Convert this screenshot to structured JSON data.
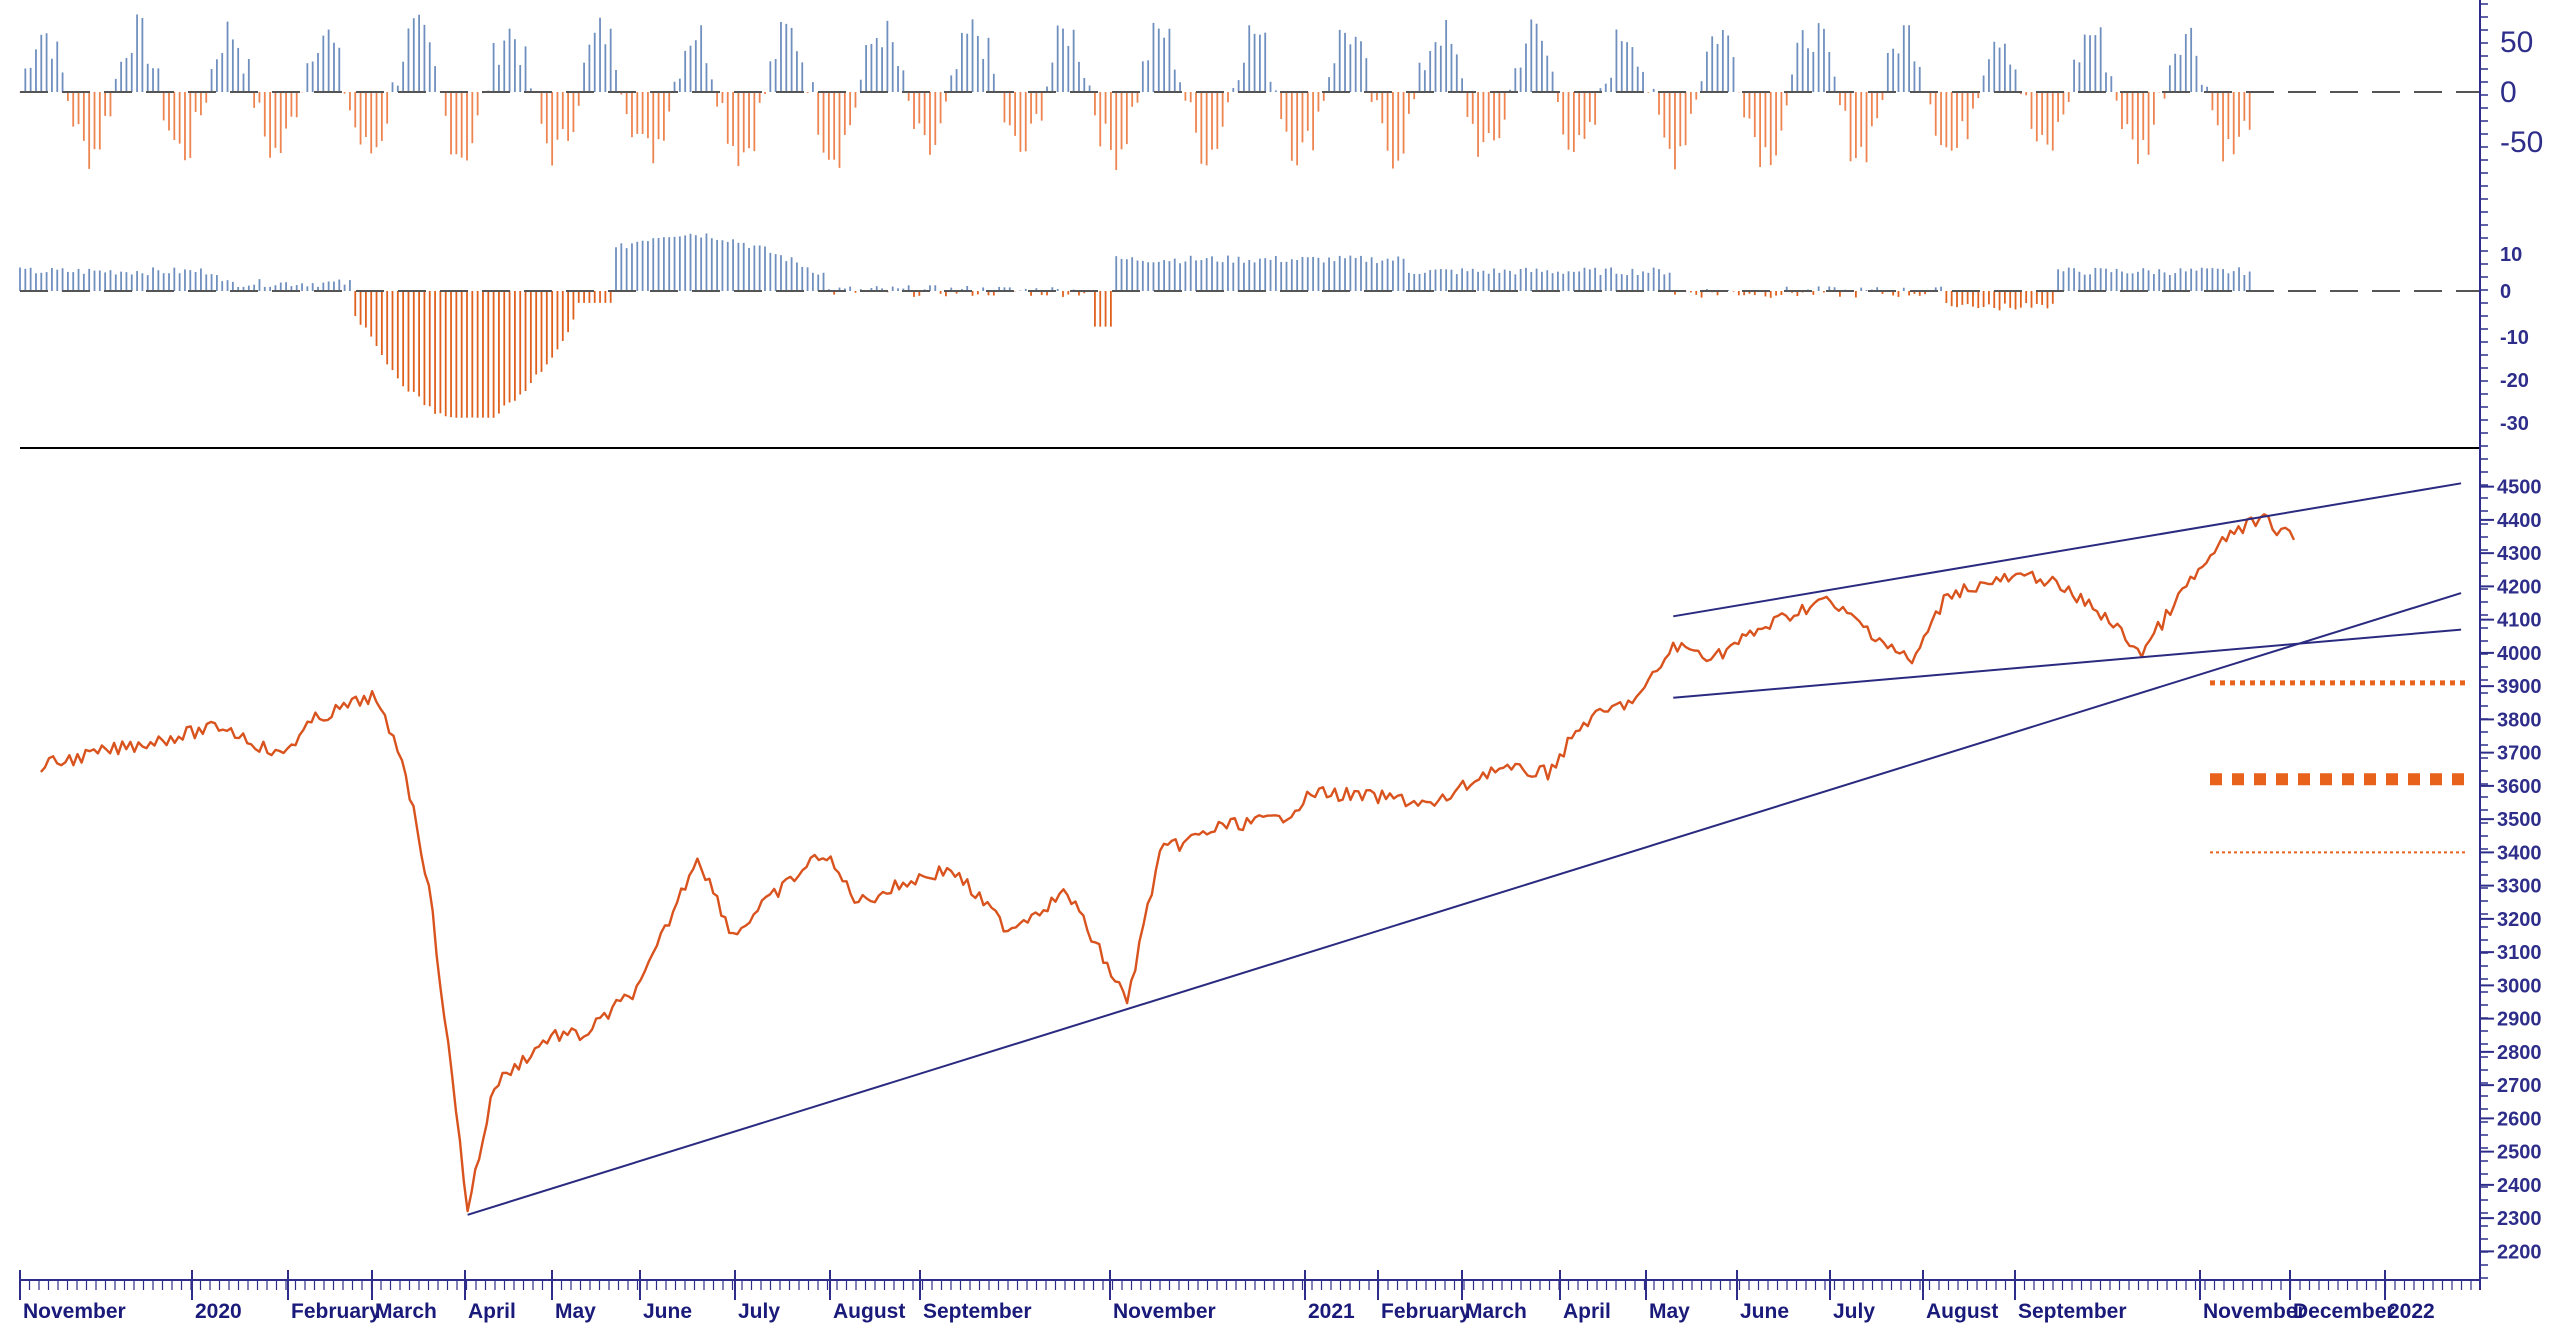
{
  "colors": {
    "price": "#d9531e",
    "up_bar": "#6f8fbf",
    "down_bar": "#ee8450",
    "down_bar_dark": "#e0601e",
    "trendline": "#2a2a80",
    "axis": "#2e2e8a",
    "separator": "#000000",
    "zero_line": "#555555",
    "support_levels": "#e8621c"
  },
  "chart_data": [
    {
      "type": "bar",
      "panel": "oscillator-top",
      "title": "",
      "ylim": [
        -100,
        100
      ],
      "yticks": [
        "50",
        "0",
        "-50"
      ],
      "zero_line": "dashed",
      "description_of_values": "alternating positive (blue) and negative (orange) swings ranging roughly -80 to +90"
    },
    {
      "type": "bar",
      "panel": "oscillator-middle",
      "title": "",
      "ylim": [
        -35,
        15
      ],
      "yticks": [
        "10",
        "0",
        "-10",
        "-20",
        "-30"
      ],
      "zero_line": "dashed",
      "notable": {
        "min_value": -32,
        "min_month": "March 2020",
        "max_value": 16,
        "max_month": "June 2020"
      }
    },
    {
      "type": "line",
      "panel": "price",
      "title": "",
      "xlabel": "",
      "ylabel": "",
      "ylim": [
        2150,
        4520
      ],
      "yticks": [
        "4500",
        "4400",
        "4300",
        "4200",
        "4100",
        "4000",
        "3900",
        "3800",
        "3700",
        "3600",
        "3500",
        "3400",
        "3300",
        "3200",
        "3100",
        "3000",
        "2900",
        "2800",
        "2700",
        "2600",
        "2500",
        "2400",
        "2300",
        "2200"
      ],
      "x_labels": [
        "November",
        "2020",
        "February",
        "March",
        "April",
        "May",
        "June",
        "July",
        "August",
        "September",
        "November",
        "2021",
        "February",
        "March",
        "April",
        "May",
        "June",
        "July",
        "August",
        "September",
        "November",
        "December",
        "2022"
      ],
      "points": [
        {
          "date": "2019-11",
          "y": 3660
        },
        {
          "date": "2019-12",
          "y": 3720
        },
        {
          "date": "2020-01",
          "y": 3780
        },
        {
          "date": "2020-01-20",
          "y": 3690
        },
        {
          "date": "2020-02",
          "y": 3800
        },
        {
          "date": "2020-02-20",
          "y": 3870
        },
        {
          "date": "2020-03-01",
          "y": 3690
        },
        {
          "date": "2020-03-10",
          "y": 3300
        },
        {
          "date": "2020-03-23",
          "y": 2330
        },
        {
          "date": "2020-04",
          "y": 2700
        },
        {
          "date": "2020-04-20",
          "y": 2850
        },
        {
          "date": "2020-05",
          "y": 2850
        },
        {
          "date": "2020-05-20",
          "y": 3000
        },
        {
          "date": "2020-06-08",
          "y": 3390
        },
        {
          "date": "2020-06-20",
          "y": 3150
        },
        {
          "date": "2020-07",
          "y": 3250
        },
        {
          "date": "2020-07-20",
          "y": 3400
        },
        {
          "date": "2020-08",
          "y": 3250
        },
        {
          "date": "2020-08-20",
          "y": 3320
        },
        {
          "date": "2020-09",
          "y": 3350
        },
        {
          "date": "2020-09-20",
          "y": 3170
        },
        {
          "date": "2020-10-10",
          "y": 3280
        },
        {
          "date": "2020-10-30",
          "y": 2950
        },
        {
          "date": "2020-11-10",
          "y": 3400
        },
        {
          "date": "2020-12",
          "y": 3480
        },
        {
          "date": "2020-12-20",
          "y": 3500
        },
        {
          "date": "2021-01",
          "y": 3580
        },
        {
          "date": "2021-01-30",
          "y": 3560
        },
        {
          "date": "2021-02-10",
          "y": 3540
        },
        {
          "date": "2021-03",
          "y": 3650
        },
        {
          "date": "2021-03-20",
          "y": 3640
        },
        {
          "date": "2021-04",
          "y": 3790
        },
        {
          "date": "2021-04-20",
          "y": 3870
        },
        {
          "date": "2021-05",
          "y": 4020
        },
        {
          "date": "2021-05-15",
          "y": 3990
        },
        {
          "date": "2021-06",
          "y": 4080
        },
        {
          "date": "2021-06-20",
          "y": 4160
        },
        {
          "date": "2021-07",
          "y": 4100
        },
        {
          "date": "2021-07-20",
          "y": 3970
        },
        {
          "date": "2021-08",
          "y": 4180
        },
        {
          "date": "2021-08-20",
          "y": 4220
        },
        {
          "date": "2021-09",
          "y": 4230
        },
        {
          "date": "2021-09-20",
          "y": 4130
        },
        {
          "date": "2021-10-05",
          "y": 4000
        },
        {
          "date": "2021-10-20",
          "y": 4200
        },
        {
          "date": "2021-11-05",
          "y": 4370
        },
        {
          "date": "2021-11-15",
          "y": 4400
        },
        {
          "date": "2021-11-25",
          "y": 4340
        }
      ],
      "trendlines": [
        {
          "name": "long-term-support",
          "from": {
            "date": "2020-03-23",
            "y": 2310
          },
          "to": {
            "date": "2022-01-20",
            "y": 4180
          }
        },
        {
          "name": "channel-upper",
          "from": {
            "date": "2021-05",
            "y": 4110
          },
          "to": {
            "date": "2022-01-20",
            "y": 4510
          }
        },
        {
          "name": "channel-lower",
          "from": {
            "date": "2021-05",
            "y": 3865
          },
          "to": {
            "date": "2022-01-20",
            "y": 4070
          }
        }
      ],
      "support_levels": [
        {
          "y": 3910,
          "style": "dotted"
        },
        {
          "y": 3620,
          "style": "dashed-heavy"
        },
        {
          "y": 3400,
          "style": "dotted-thin"
        }
      ]
    }
  ]
}
